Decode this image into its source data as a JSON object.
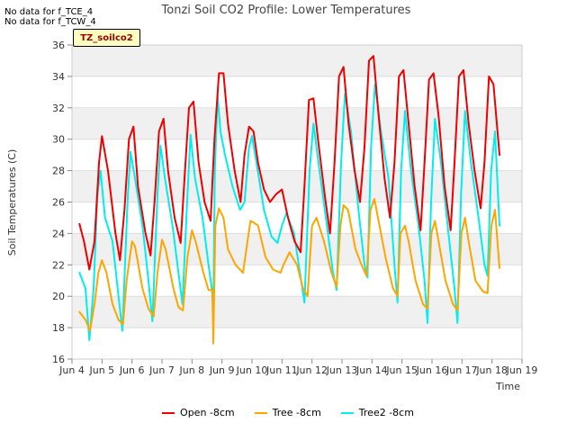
{
  "notes": [
    "No data for f_TCE_4",
    "No data for f_TCW_4"
  ],
  "badge": "TZ_soilco2",
  "chart_data": {
    "type": "line",
    "title": "Tonzi Soil CO2 Profile: Lower Temperatures",
    "xlabel": "Time",
    "ylabel": "Soil Temperatures (C)",
    "x_unit": "days (June)",
    "xlim": [
      4,
      19
    ],
    "ylim": [
      16,
      36
    ],
    "yticks": [
      16,
      18,
      20,
      22,
      24,
      26,
      28,
      30,
      32,
      34,
      36
    ],
    "xticks": [
      4,
      5,
      6,
      7,
      8,
      9,
      10,
      11,
      12,
      13,
      14,
      15,
      16,
      17,
      18,
      19
    ],
    "xtick_labels": [
      "Jun 4",
      "Jun 5",
      "Jun 6",
      "Jun 7",
      "Jun 8",
      "Jun 9",
      "Jun 10",
      "Jun 11",
      "Jun 12",
      "Jun 13",
      "Jun 14",
      "Jun 15",
      "Jun 16",
      "Jun 17",
      "Jun 18",
      "Jun 19"
    ],
    "grid": true,
    "legend_position": "bottom",
    "series": [
      {
        "name": "Open -8cm",
        "color": "#ee0000",
        "x": [
          4.25,
          4.4,
          4.58,
          4.75,
          4.9,
          5.0,
          5.2,
          5.45,
          5.6,
          5.75,
          5.9,
          6.05,
          6.2,
          6.45,
          6.62,
          6.75,
          6.9,
          7.05,
          7.2,
          7.42,
          7.62,
          7.75,
          7.9,
          8.05,
          8.22,
          8.42,
          8.62,
          8.75,
          8.9,
          9.05,
          9.2,
          9.42,
          9.62,
          9.75,
          9.9,
          10.05,
          10.2,
          10.4,
          10.6,
          10.8,
          11.0,
          11.2,
          11.42,
          11.62,
          11.75,
          11.9,
          12.05,
          12.2,
          12.42,
          12.6,
          12.75,
          12.9,
          13.05,
          13.22,
          13.42,
          13.6,
          13.75,
          13.9,
          14.05,
          14.22,
          14.42,
          14.6,
          14.75,
          14.9,
          15.05,
          15.22,
          15.42,
          15.62,
          15.75,
          15.9,
          16.05,
          16.22,
          16.42,
          16.62,
          16.75,
          16.9,
          17.05,
          17.22,
          17.42,
          17.62,
          17.75,
          17.9,
          18.05,
          18.25
        ],
        "values": [
          24.6,
          23.5,
          21.7,
          23.5,
          28.5,
          30.2,
          28.0,
          24.0,
          22.3,
          25.5,
          30.0,
          30.8,
          27.0,
          24.0,
          22.6,
          26.0,
          30.5,
          31.3,
          28.0,
          25.0,
          23.4,
          27.5,
          32.0,
          32.4,
          28.5,
          26.0,
          24.8,
          30.0,
          34.2,
          34.2,
          31.0,
          28.0,
          26.0,
          29.0,
          30.8,
          30.5,
          28.5,
          26.8,
          26.0,
          26.5,
          26.8,
          25.0,
          23.5,
          22.8,
          27.0,
          32.5,
          32.6,
          30.0,
          26.5,
          24.0,
          28.5,
          34.0,
          34.6,
          31.0,
          28.0,
          26.0,
          29.5,
          35.0,
          35.3,
          31.5,
          27.5,
          25.0,
          28.5,
          34.0,
          34.4,
          31.0,
          27.0,
          24.2,
          28.5,
          33.8,
          34.2,
          31.5,
          27.0,
          24.2,
          28.5,
          34.0,
          34.4,
          31.0,
          28.0,
          25.6,
          28.5,
          34.0,
          33.5,
          29.0
        ]
      },
      {
        "name": "Tree -8cm",
        "color": "#ffa500",
        "x": [
          4.25,
          4.45,
          4.6,
          4.75,
          4.88,
          5.0,
          5.15,
          5.35,
          5.55,
          5.7,
          5.82,
          6.0,
          6.1,
          6.35,
          6.55,
          6.72,
          6.85,
          7.0,
          7.12,
          7.38,
          7.55,
          7.7,
          7.85,
          8.0,
          8.12,
          8.38,
          8.55,
          8.68,
          8.71,
          8.78,
          8.9,
          9.05,
          9.2,
          9.45,
          9.7,
          9.85,
          9.95,
          10.05,
          10.2,
          10.45,
          10.7,
          10.95,
          11.05,
          11.25,
          11.5,
          11.7,
          11.85,
          12.0,
          12.15,
          12.4,
          12.65,
          12.82,
          12.95,
          13.05,
          13.2,
          13.45,
          13.65,
          13.82,
          13.95,
          14.08,
          14.2,
          14.45,
          14.7,
          14.85,
          14.95,
          15.1,
          15.22,
          15.45,
          15.7,
          15.85,
          15.98,
          16.1,
          16.22,
          16.45,
          16.7,
          16.85,
          16.98,
          17.1,
          17.22,
          17.45,
          17.7,
          17.85,
          17.98,
          18.1,
          18.25
        ],
        "values": [
          19.0,
          18.5,
          17.8,
          19.5,
          21.5,
          22.3,
          21.5,
          19.5,
          18.5,
          18.2,
          21.0,
          23.5,
          23.2,
          20.5,
          19.2,
          18.7,
          21.5,
          23.6,
          23.0,
          20.5,
          19.3,
          19.1,
          22.5,
          24.2,
          23.5,
          21.5,
          20.4,
          20.4,
          17.0,
          24.5,
          25.6,
          25.0,
          23.0,
          22.0,
          21.5,
          23.5,
          24.8,
          24.7,
          24.5,
          22.5,
          21.7,
          21.5,
          22.0,
          22.8,
          22.0,
          20.5,
          20.0,
          24.5,
          25.0,
          23.5,
          21.5,
          20.6,
          24.5,
          25.8,
          25.5,
          23.0,
          22.0,
          21.3,
          25.5,
          26.2,
          25.0,
          22.5,
          20.5,
          20.0,
          24.0,
          24.5,
          23.5,
          21.0,
          19.5,
          19.2,
          24.0,
          24.8,
          23.5,
          21.0,
          19.5,
          19.1,
          24.0,
          25.0,
          23.5,
          21.0,
          20.3,
          20.2,
          24.5,
          25.5,
          21.8
        ]
      },
      {
        "name": "Tree2 -8cm",
        "color": "#00eeee",
        "x": [
          4.25,
          4.45,
          4.58,
          4.72,
          4.85,
          4.95,
          5.1,
          5.35,
          5.55,
          5.68,
          5.85,
          5.95,
          6.1,
          6.35,
          6.55,
          6.68,
          6.85,
          6.95,
          7.1,
          7.35,
          7.55,
          7.68,
          7.85,
          7.95,
          8.1,
          8.35,
          8.55,
          8.66,
          8.71,
          8.76,
          8.85,
          8.95,
          9.1,
          9.35,
          9.6,
          9.75,
          9.9,
          10.0,
          10.15,
          10.4,
          10.65,
          10.85,
          11.0,
          11.15,
          11.4,
          11.6,
          11.75,
          11.92,
          12.05,
          12.25,
          12.5,
          12.7,
          12.82,
          12.97,
          13.1,
          13.3,
          13.55,
          13.75,
          13.85,
          13.97,
          14.1,
          14.3,
          14.55,
          14.75,
          14.85,
          14.97,
          15.1,
          15.3,
          15.55,
          15.75,
          15.85,
          15.97,
          16.1,
          16.3,
          16.55,
          16.75,
          16.85,
          16.97,
          17.1,
          17.3,
          17.55,
          17.75,
          17.85,
          17.97,
          18.1,
          18.25
        ],
        "values": [
          21.5,
          20.5,
          17.2,
          20.5,
          26.5,
          28.0,
          25.0,
          23.5,
          20.0,
          17.8,
          26.0,
          29.2,
          27.5,
          24.5,
          21.0,
          18.4,
          26.5,
          29.6,
          27.5,
          24.5,
          21.5,
          19.5,
          26.5,
          30.3,
          27.5,
          25.0,
          22.0,
          20.5,
          19.0,
          28.0,
          32.8,
          30.5,
          29.0,
          27.0,
          25.5,
          26.0,
          29.5,
          30.2,
          28.5,
          25.5,
          23.8,
          23.4,
          24.5,
          25.3,
          24.0,
          21.5,
          19.6,
          28.0,
          31.0,
          28.0,
          24.5,
          21.5,
          20.4,
          28.5,
          32.9,
          30.5,
          25.5,
          22.0,
          21.2,
          29.5,
          33.5,
          30.5,
          27.5,
          22.0,
          19.6,
          28.0,
          31.8,
          28.0,
          24.5,
          21.0,
          18.3,
          26.0,
          31.3,
          28.5,
          24.0,
          20.5,
          18.3,
          26.5,
          31.8,
          28.5,
          25.0,
          22.0,
          21.3,
          28.0,
          30.5,
          24.5
        ]
      }
    ]
  }
}
